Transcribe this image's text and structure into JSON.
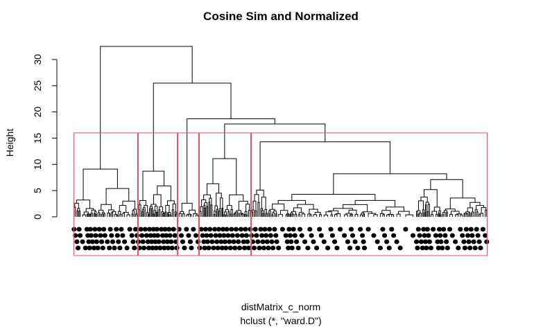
{
  "chart_data": {
    "type": "dendrogram",
    "title": "Cosine Sim and Normalized",
    "xlabel": "distMatrix_c_norm",
    "sub": "hclust (*, \"ward.D\")",
    "ylabel": "Height",
    "ylim": [
      0,
      32.5
    ],
    "yticks": [
      0,
      5,
      10,
      15,
      20,
      25,
      30
    ],
    "merges": [
      {
        "height": 32.5
      },
      {
        "height": 25.5
      },
      {
        "height": 18.7
      },
      {
        "height": 17.7
      },
      {
        "height": 14.3
      },
      {
        "height": 11.1
      },
      {
        "height": 9.1
      },
      {
        "height": 8.7
      },
      {
        "height": 8.2
      }
    ],
    "clusters_k": 5,
    "cut_height": 16.0,
    "rect_color": "#DF536B",
    "line_color": "#000000"
  }
}
